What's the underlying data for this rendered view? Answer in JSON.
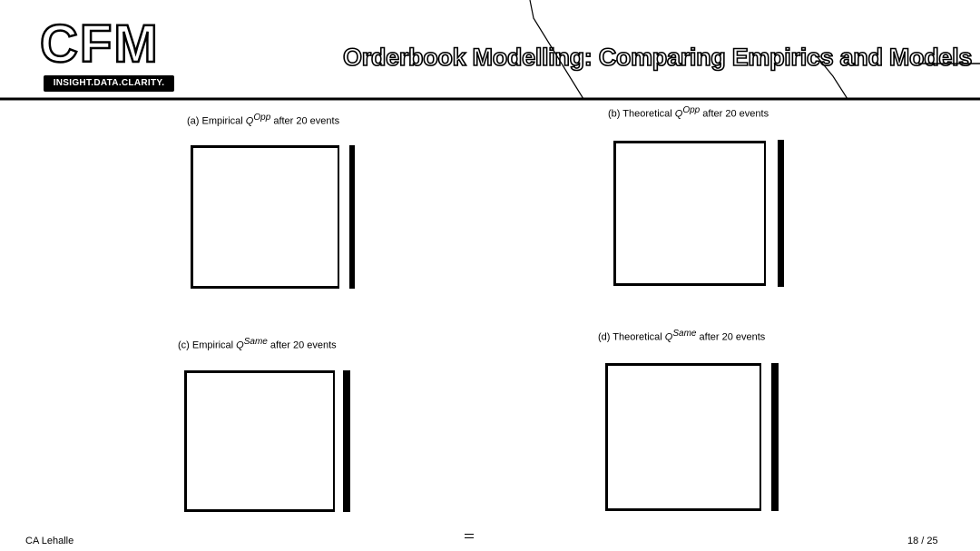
{
  "logo": {
    "wordmark": "CFM",
    "tagline": "INSIGHT.DATA.CLARITY."
  },
  "slide": {
    "title": "Orderbook Modelling: Comparing Empirics and Models"
  },
  "panels": [
    {
      "prefix": "(a) Empirical ",
      "var": "Q",
      "sup": "Opp",
      "suffix": " after 20 events"
    },
    {
      "prefix": "(b) Theoretical ",
      "var": "Q",
      "sup": "Opp",
      "suffix": " after 20 events"
    },
    {
      "prefix": "(c) Empirical ",
      "var": "Q",
      "sup": "Same",
      "suffix": " after 20 events"
    },
    {
      "prefix": "(d) Theoretical ",
      "var": "Q",
      "sup": "Same",
      "suffix": " after 20 events"
    }
  ],
  "footer": {
    "author": "CA Lehalle",
    "page": "18 / 25"
  }
}
